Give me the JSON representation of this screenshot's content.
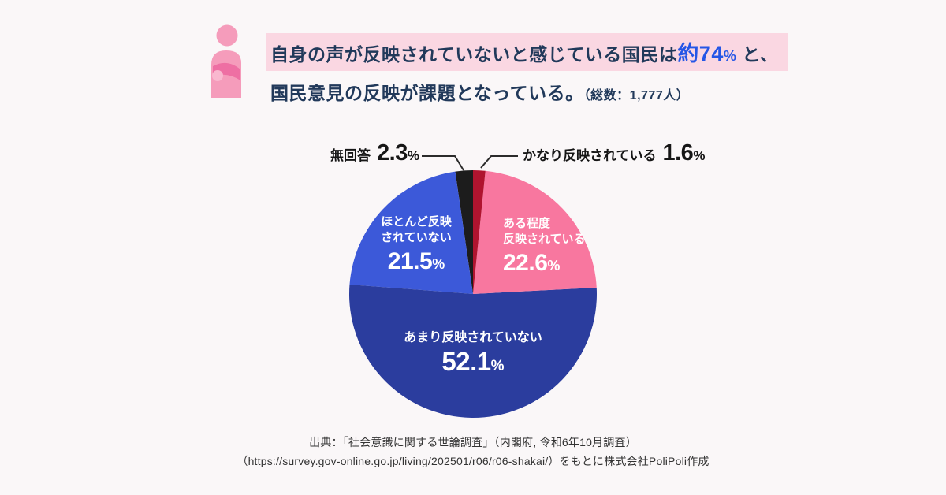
{
  "header": {
    "highlight_pre": "自身の声が反映されていないと感じている国民は",
    "emphasis_value": "約74",
    "emphasis_unit": "%",
    "highlight_post": " と、",
    "line2": "国民意見の反映が課題となっている。",
    "total_note": "（総数：1,777人）"
  },
  "colors": {
    "background": "#faf7f8",
    "heading_text": "#21395a",
    "emphasis_blue": "#2456e6",
    "highlight_pink": "#fad7e2",
    "pink_slice": "#f8779f",
    "dark_blue_slice": "#2b3d9e",
    "medium_blue_slice": "#3c59d9",
    "red_slice": "#b0142f",
    "black_slice": "#1c1c1c"
  },
  "chart_data": {
    "type": "pie",
    "title": "自身の声が反映されていないと感じている国民の割合",
    "total_respondents": "1,777",
    "direction": "clockwise",
    "start_angle_deg": 0,
    "legend_position": "inside-and-callouts",
    "slices": [
      {
        "id": "very-reflected",
        "label": "かなり反映されている",
        "value": 1.6,
        "color": "#b0142f"
      },
      {
        "id": "somewhat-reflected",
        "label": "ある程度反映されている",
        "value": 22.6,
        "color": "#f8779f"
      },
      {
        "id": "not-much-reflected",
        "label": "あまり反映されていない",
        "value": 52.1,
        "color": "#2b3d9e"
      },
      {
        "id": "hardly-reflected",
        "label": "ほとんど反映されていない",
        "value": 21.5,
        "color": "#3c59d9"
      },
      {
        "id": "no-answer",
        "label": "無回答",
        "value": 2.3,
        "color": "#1c1c1c"
      }
    ]
  },
  "pie_labels": {
    "somewhat": {
      "line1": "ある程度",
      "line2": "反映されている",
      "value": "22.6",
      "unit": "%"
    },
    "not_much": {
      "line1": "あまり反映されていない",
      "value": "52.1",
      "unit": "%"
    },
    "hardly": {
      "line1": "ほとんど反映",
      "line2": "されていない",
      "value": "21.5",
      "unit": "%"
    },
    "no_answer": {
      "label": "無回答",
      "value": "2.3",
      "unit": "%"
    },
    "very": {
      "label": "かなり反映されている",
      "value": "1.6",
      "unit": "%"
    }
  },
  "footer": {
    "line1": "出典：「社会意識に関する世論調査」（内閣府, 令和6年10月調査）",
    "line2": "（https://survey.gov-online.go.jp/living/202501/r06/r06-shakai/）をもとに株式会社PoliPoli作成"
  }
}
